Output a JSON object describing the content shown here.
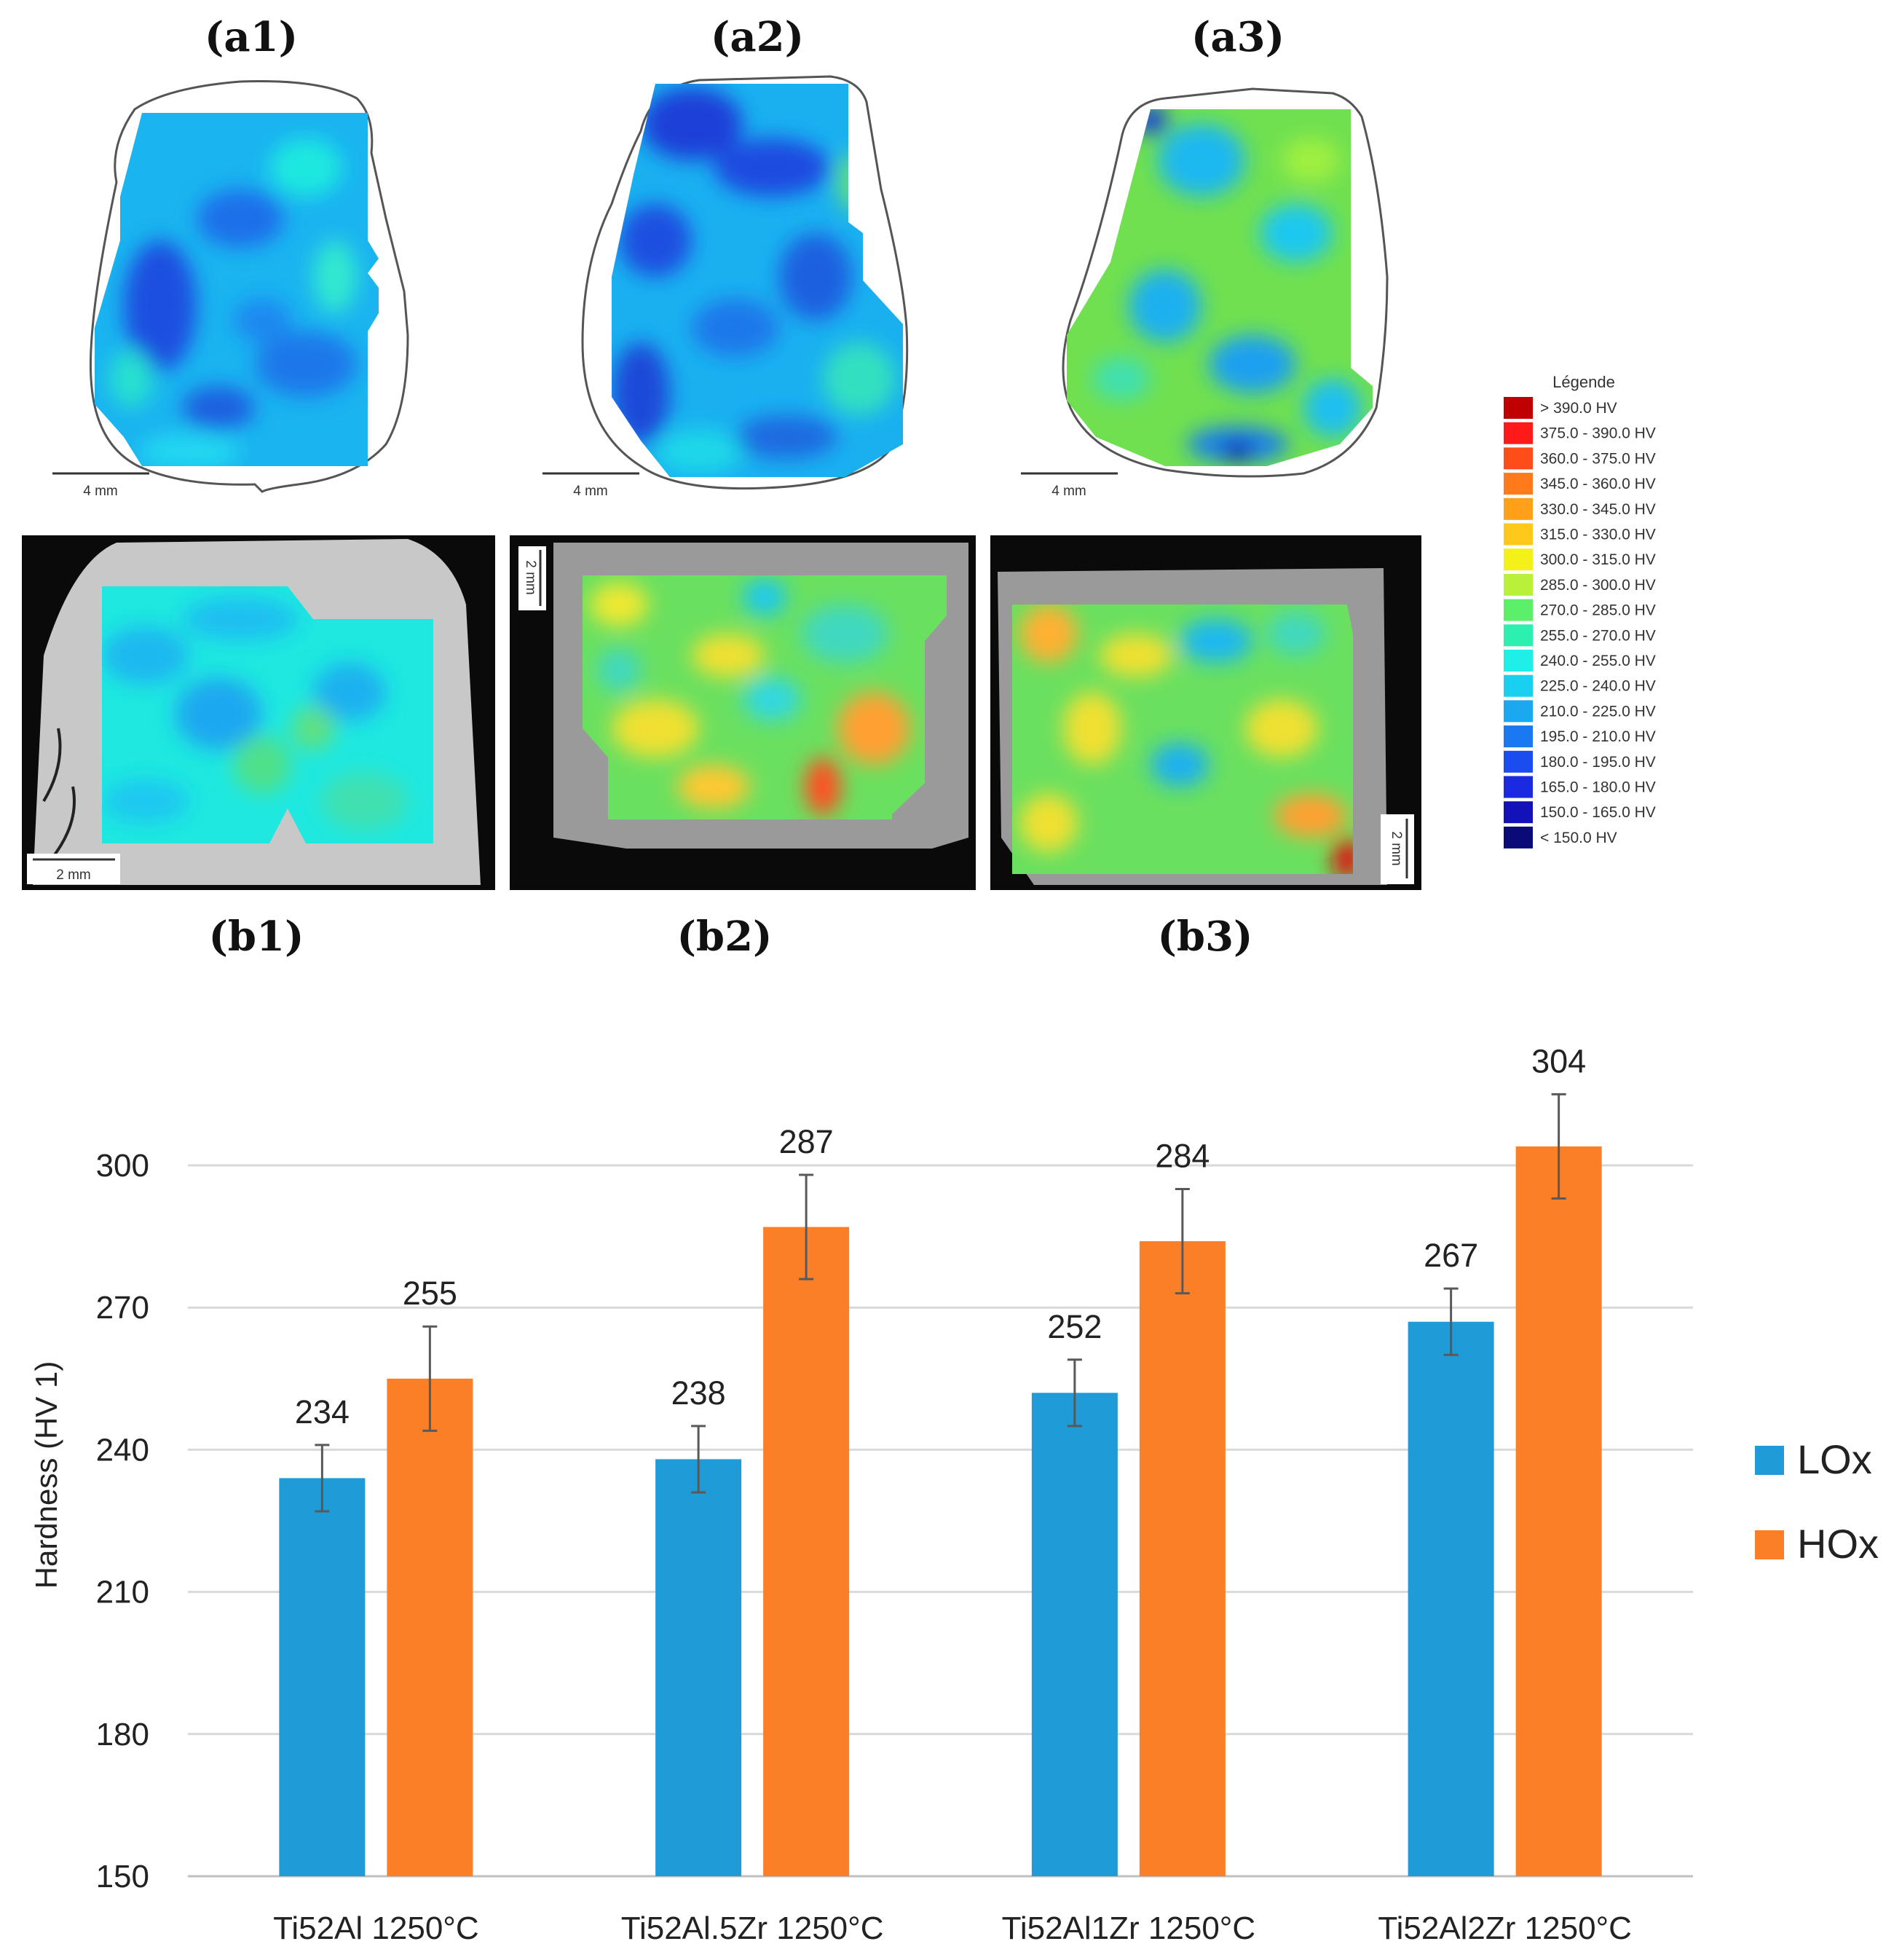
{
  "maps": {
    "top_labels": [
      "(a1)",
      "(a2)",
      "(a3)"
    ],
    "bottom_labels": [
      "(b1)",
      "(b2)",
      "(b3)"
    ],
    "scale_top": [
      "4 mm",
      "4 mm",
      "4 mm"
    ],
    "scale_bottom": [
      "2 mm",
      "2 mm",
      "2 mm"
    ],
    "legend_title": "Légende",
    "legend_entries": [
      {
        "label": "> 390.0 HV",
        "color": "#c00000"
      },
      {
        "label": "375.0 - 390.0 HV",
        "color": "#ff1a1a"
      },
      {
        "label": "360.0 - 375.0 HV",
        "color": "#ff4d1a"
      },
      {
        "label": "345.0 - 360.0 HV",
        "color": "#ff7a1a"
      },
      {
        "label": "330.0 - 345.0 HV",
        "color": "#ffa01a"
      },
      {
        "label": "315.0 - 330.0 HV",
        "color": "#ffc81a"
      },
      {
        "label": "300.0 - 315.0 HV",
        "color": "#f4f01a"
      },
      {
        "label": "285.0 - 300.0 HV",
        "color": "#b8f03a"
      },
      {
        "label": "270.0 - 285.0 HV",
        "color": "#5cf06a"
      },
      {
        "label": "255.0 - 270.0 HV",
        "color": "#2cf0b0"
      },
      {
        "label": "240.0 - 255.0 HV",
        "color": "#1ef0e8"
      },
      {
        "label": "225.0 - 240.0 HV",
        "color": "#1ad0f0"
      },
      {
        "label": "210.0 - 225.0 HV",
        "color": "#1aa8f0"
      },
      {
        "label": "195.0 - 210.0 HV",
        "color": "#1a78f0"
      },
      {
        "label": "180.0 - 195.0 HV",
        "color": "#1a4cf0"
      },
      {
        "label": "165.0 - 180.0 HV",
        "color": "#1a2ae0"
      },
      {
        "label": "150.0 - 165.0 HV",
        "color": "#1212b8"
      },
      {
        "label": "< 150.0 HV",
        "color": "#0a0a78"
      }
    ]
  },
  "chart_data": {
    "type": "bar",
    "categories": [
      "Ti52Al 1250°C",
      "Ti52Al.5Zr 1250°C",
      "Ti52Al1Zr 1250°C",
      "Ti52Al2Zr 1250°C"
    ],
    "series": [
      {
        "name": "LOx",
        "color": "#1f9bd7",
        "values": [
          234,
          238,
          252,
          267
        ],
        "errors": [
          7,
          7,
          7,
          7
        ],
        "labels": [
          "234",
          "238",
          "252",
          "267"
        ]
      },
      {
        "name": "HOx",
        "color": "#fb7f26",
        "values": [
          255,
          287,
          284,
          304
        ],
        "errors": [
          11,
          11,
          11,
          11
        ],
        "labels": [
          "255",
          "287",
          "284",
          "304"
        ]
      }
    ],
    "title": "",
    "xlabel": "",
    "ylabel": "Hardness (HV 1)",
    "ylim": [
      150,
      300
    ],
    "yticks": [
      "150",
      "180",
      "210",
      "240",
      "270",
      "300"
    ],
    "grid": true,
    "legend": "right"
  }
}
